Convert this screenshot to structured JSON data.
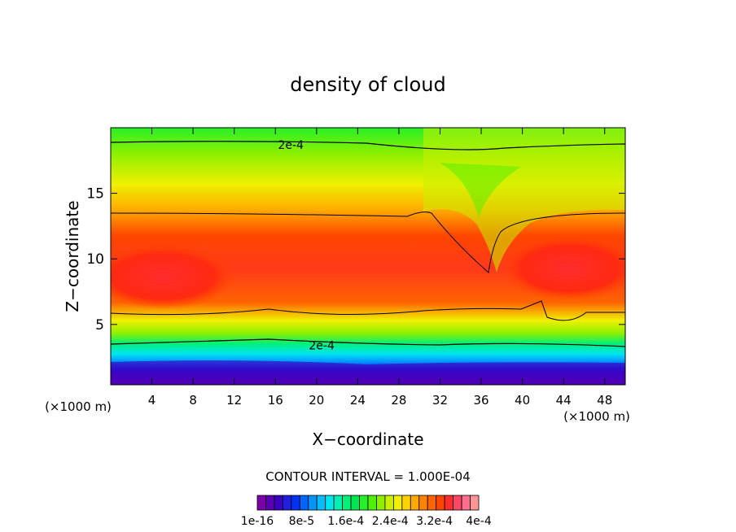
{
  "chart_data": {
    "type": "heatmap",
    "title": "density of cloud",
    "xlabel": "X−coordinate",
    "ylabel": "Z−coordinate",
    "x_unit_left": "(×1000 m)",
    "x_unit_right": "(×1000 m)",
    "xlim": [
      0,
      50
    ],
    "ylim": [
      0.4,
      20
    ],
    "x_ticks": [
      4,
      8,
      12,
      16,
      20,
      24,
      28,
      32,
      36,
      40,
      44,
      48
    ],
    "y_ticks": [
      5,
      10,
      15
    ],
    "grid": false,
    "contour_interval_text": "CONTOUR INTERVAL = 1.000E-04",
    "contour_labels": [
      {
        "text": "2e-4",
        "x": 17.5,
        "z": 18.7
      },
      {
        "text": "2e-4",
        "x": 20.5,
        "z": 3.4
      }
    ],
    "colorbar": {
      "colors": [
        "#7a00a8",
        "#5a00b4",
        "#3c00c0",
        "#1e1edc",
        "#0032f0",
        "#0064ff",
        "#0096ff",
        "#00beff",
        "#00e6f0",
        "#00f0b4",
        "#00f078",
        "#00e650",
        "#28f028",
        "#50f000",
        "#8cf000",
        "#c8f000",
        "#f0f000",
        "#ffd200",
        "#ffaa00",
        "#ff8200",
        "#ff6400",
        "#ff4600",
        "#ff2d2d",
        "#ff4664",
        "#ff6e8c",
        "#ff9696"
      ],
      "labels": [
        "1e-16",
        "8e-5",
        "1.6e-4",
        "2.4e-4",
        "3.2e-4",
        "4e-4"
      ]
    }
  }
}
